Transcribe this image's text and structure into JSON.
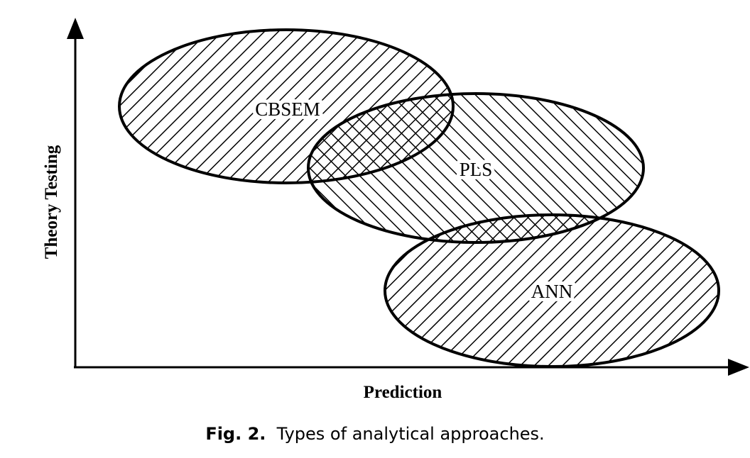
{
  "diagram": {
    "x_axis_label": "Prediction",
    "y_axis_label": "Theory Testing",
    "regions": [
      {
        "name": "CBSEM",
        "label": "CBSEM"
      },
      {
        "name": "PLS",
        "label": "PLS"
      },
      {
        "name": "ANN",
        "label": "ANN"
      }
    ]
  },
  "caption": {
    "figure_number": "Fig. 2.",
    "text": "Types of analytical approaches."
  },
  "colors": {
    "ink": "#000000",
    "background": "#ffffff"
  }
}
